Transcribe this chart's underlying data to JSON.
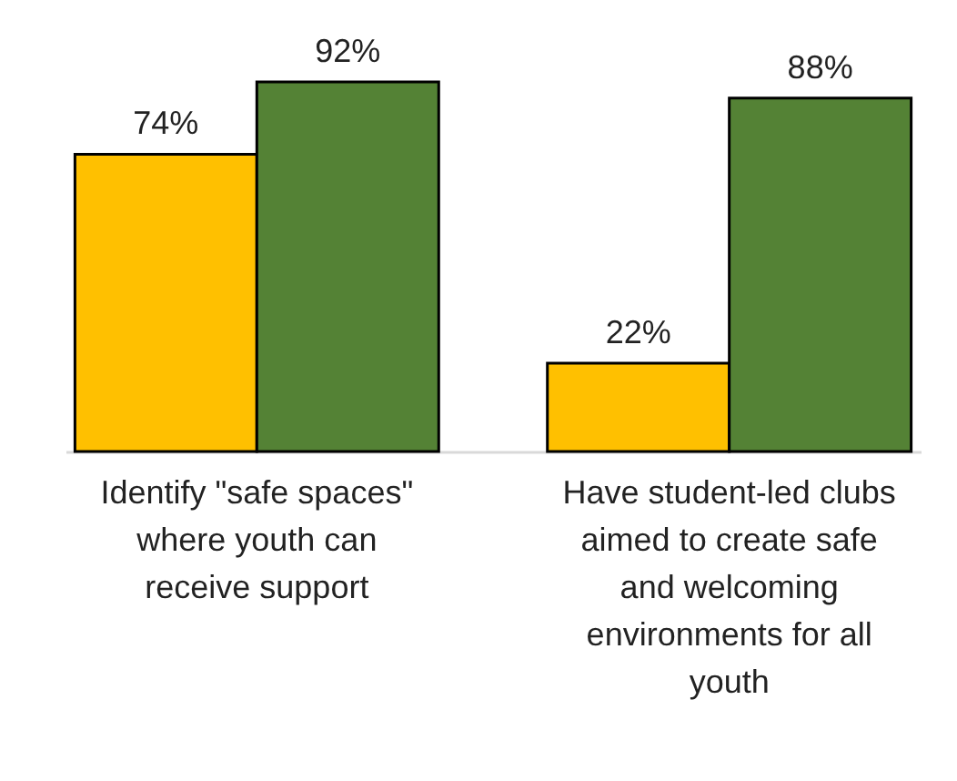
{
  "chart_data": {
    "type": "bar",
    "categories": [
      "Identify \"safe spaces\" where youth can receive support",
      "Have student-led clubs aimed to create safe and welcoming environments for all youth"
    ],
    "series": [
      {
        "color": "#ffc000",
        "values": [
          74,
          22
        ],
        "value_labels": [
          "74%",
          "22%"
        ]
      },
      {
        "color": "#548235",
        "values": [
          92,
          88
        ],
        "value_labels": [
          "92%",
          "88%"
        ]
      }
    ],
    "legend": false,
    "grid": false
  }
}
